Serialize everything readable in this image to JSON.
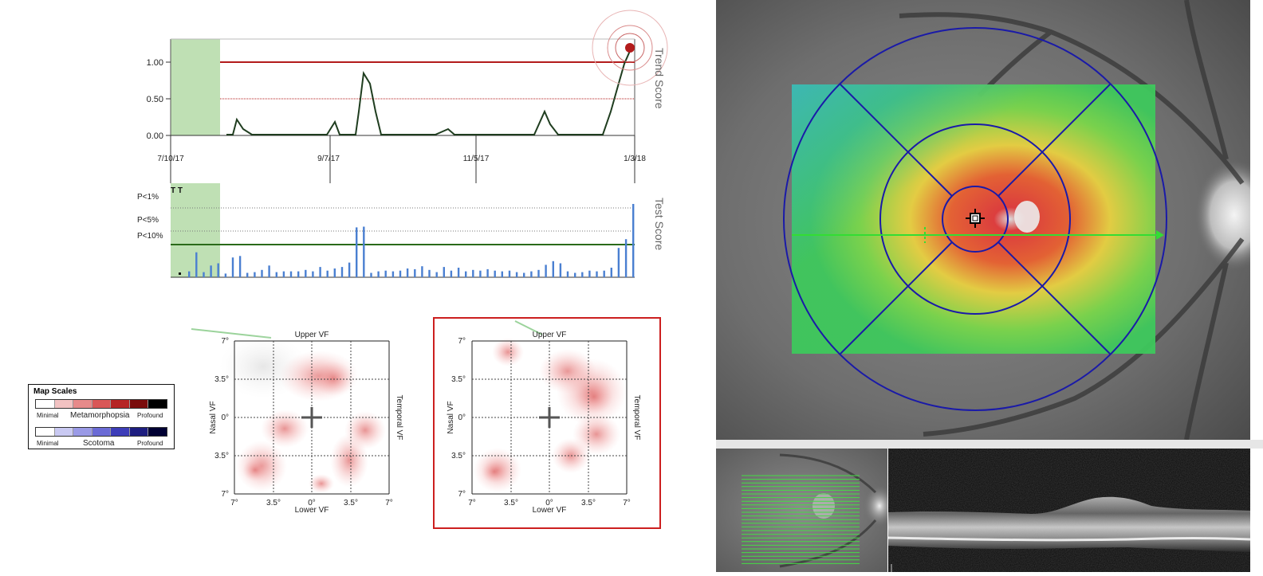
{
  "trend_chart": {
    "side_label": "Trend Score",
    "y_ticks": [
      "1.00",
      "0.50",
      "0.00"
    ],
    "x_ticks": [
      "7/10/17",
      "9/7/17",
      "11/5/17",
      "1/3/18"
    ]
  },
  "test_chart": {
    "side_label": "Test Score",
    "y_ticks": [
      "P<1%",
      "P<5%",
      "P<10%"
    ],
    "marker": "T T"
  },
  "vf_plot_left": {
    "top_label": "Upper VF",
    "bottom_label": "Lower VF",
    "left_label": "Nasal VF",
    "right_label": "Temporal VF",
    "y_ticks": [
      "7°",
      "3.5°",
      "0°",
      "3.5°",
      "7°"
    ],
    "x_ticks": [
      "7°",
      "3.5°",
      "0°",
      "3.5°",
      "7°"
    ]
  },
  "vf_plot_right": {
    "top_label": "Upper VF",
    "bottom_label": "Lower VF",
    "left_label": "Nasal VF",
    "right_label": "Temporal VF",
    "y_ticks": [
      "7°",
      "3.5°",
      "0°",
      "3.5°",
      "7°"
    ],
    "x_ticks": [
      "7°",
      "3.5°",
      "0°",
      "3.5°",
      "7°"
    ],
    "highlight_color": "#cc1f1f"
  },
  "legend": {
    "title": "Map Scales",
    "metamorphopsia": {
      "name": "Metamorphopsia",
      "min": "Minimal",
      "max": "Profound",
      "colors": [
        "#ffffff",
        "#f2c2c2",
        "#e78a8a",
        "#d95757",
        "#b52424",
        "#7a0c0c",
        "#000000"
      ]
    },
    "scotoma": {
      "name": "Scotoma",
      "min": "Minimal",
      "max": "Profound",
      "colors": [
        "#ffffff",
        "#c9c9f2",
        "#9a9ae6",
        "#6b6bd6",
        "#3d3db8",
        "#1e1e80",
        "#000033"
      ]
    }
  },
  "colors": {
    "trend_line": "#1f3d1f",
    "threshold": "#b31b1b",
    "bars": "#4a7fd1",
    "baseline_band": "#bfe0b4",
    "grid_ring": "#1a1aa8"
  },
  "chart_data": [
    {
      "type": "line",
      "ylabel": "Trend Score",
      "ylim": [
        0,
        1.2
      ],
      "x": [
        "7/10/17",
        "7/20/17",
        "7/28/17",
        "8/3/17",
        "8/10/17",
        "8/20/17",
        "8/30/17",
        "9/5/17",
        "9/7/17",
        "9/10/17",
        "9/14/17",
        "9/17/17",
        "9/21/17",
        "9/26/17",
        "10/5/17",
        "10/15/17",
        "10/25/17",
        "10/31/17",
        "11/5/17",
        "11/15/17",
        "11/25/17",
        "12/1/17",
        "12/7/17",
        "12/12/17",
        "12/18/17",
        "12/24/17",
        "12/29/17",
        "1/3/18"
      ],
      "values": [
        null,
        null,
        0.0,
        0.22,
        0.0,
        0.0,
        0.0,
        0.0,
        0.18,
        0.0,
        0.0,
        0.85,
        0.6,
        0.0,
        0.0,
        0.0,
        0.08,
        0.0,
        0.0,
        0.0,
        0.32,
        0.0,
        0.0,
        0.0,
        0.0,
        0.0,
        0.45,
        1.1
      ],
      "reference_lines": [
        1.0,
        0.5
      ]
    },
    {
      "type": "bar",
      "ylabel": "Test Score",
      "values": [
        0.08,
        0.34,
        0.07,
        0.16,
        0.19,
        0.05,
        0.27,
        0.29,
        0.06,
        0.07,
        0.1,
        0.16,
        0.07,
        0.08,
        0.08,
        0.08,
        0.1,
        0.08,
        0.14,
        0.09,
        0.12,
        0.14,
        0.2,
        0.68,
        0.69,
        0.06,
        0.08,
        0.09,
        0.08,
        0.09,
        0.12,
        0.11,
        0.15,
        0.1,
        0.07,
        0.14,
        0.09,
        0.13,
        0.08,
        0.1,
        0.09,
        0.11,
        0.09,
        0.08,
        0.09,
        0.07,
        0.06,
        0.08,
        0.1,
        0.17,
        0.22,
        0.19,
        0.08,
        0.06,
        0.07,
        0.09,
        0.08,
        0.09,
        0.13,
        0.4,
        0.52,
        1.0
      ],
      "thresholds": {
        "P<1%": 0.97,
        "P<5%": 0.66,
        "P<10%": 0.43
      }
    }
  ]
}
